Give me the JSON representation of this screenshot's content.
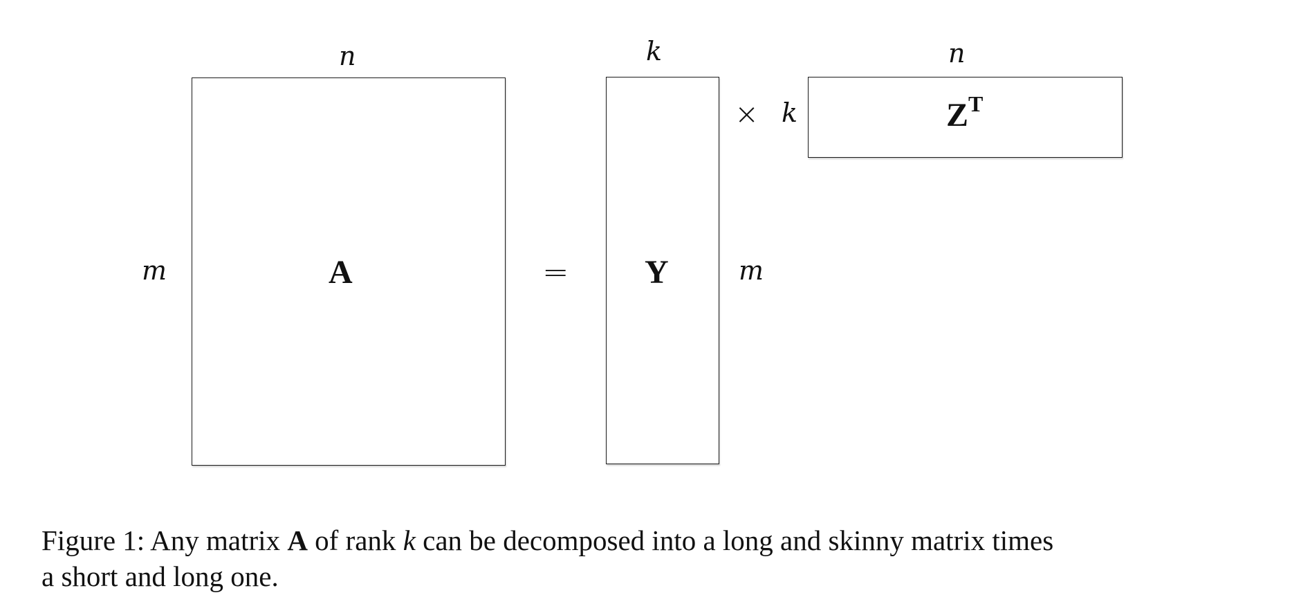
{
  "diagram": {
    "matrices": {
      "a": {
        "label": "A"
      },
      "y": {
        "label": "Y"
      },
      "zt": {
        "label_base": "Z",
        "label_sup": "T"
      }
    },
    "dimensions": {
      "a_cols": "n",
      "a_rows": "m",
      "y_cols": "k",
      "y_rows": "m",
      "zt_cols": "n",
      "zt_rows": "k"
    },
    "operators": {
      "equals": "=",
      "times": "×"
    }
  },
  "caption": {
    "line1_part1": "Figure 1:  Any matrix ",
    "line1_bold": "A",
    "line1_part2": " of rank ",
    "line1_ital": "k",
    "line1_part3": " can be decomposed into a long and skinny matrix times",
    "line2": "a short and long one."
  }
}
